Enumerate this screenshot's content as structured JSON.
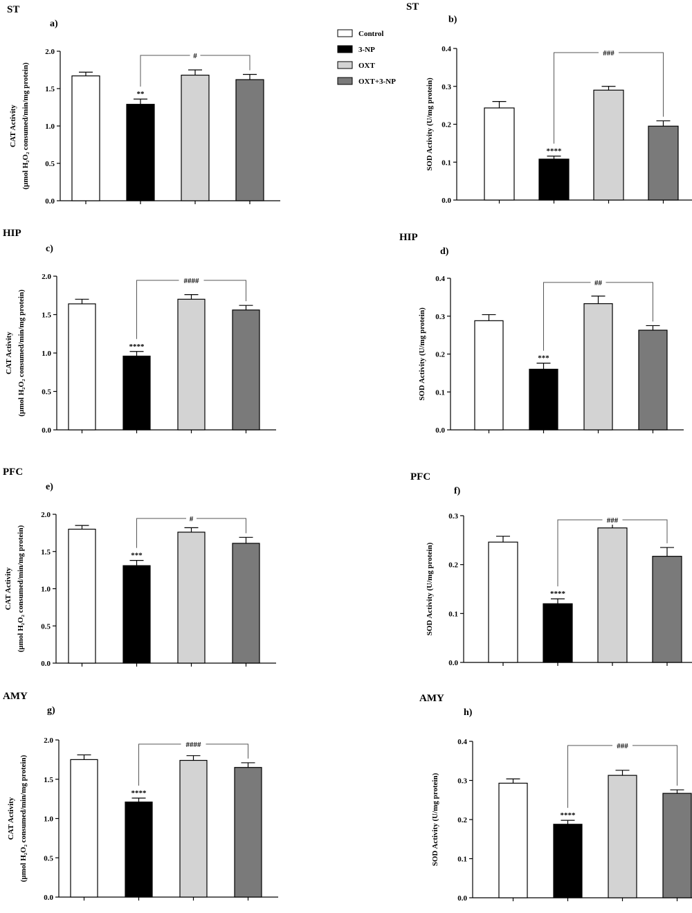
{
  "legend": [
    {
      "label": "Control",
      "color": "#ffffff"
    },
    {
      "label": "3-NP",
      "color": "#000000"
    },
    {
      "label": "OXT",
      "color": "#d3d3d3"
    },
    {
      "label": "OXT+3-NP",
      "color": "#7a7a7a"
    }
  ],
  "chart_data": [
    {
      "type": "bar",
      "panel": "a)",
      "region": "ST",
      "ylabel": [
        "CAT Activity",
        "(µmol H₂O₂ consumed/min/mg protein)"
      ],
      "ylim": [
        0,
        2.0
      ],
      "yticks": [
        "0.0",
        "0.5",
        "1.0",
        "1.5",
        "2.0"
      ],
      "categories": [
        "Control",
        "3-NP",
        "OXT",
        "OXT+3-NP"
      ],
      "values": [
        1.67,
        1.29,
        1.68,
        1.62
      ],
      "errors": [
        0.05,
        0.07,
        0.07,
        0.07
      ],
      "stars": "**",
      "bracket_label": "#"
    },
    {
      "type": "bar",
      "panel": "b)",
      "region": "ST",
      "ylabel": [
        "SOD Activity (U/mg protein)"
      ],
      "ylim": [
        0,
        0.4
      ],
      "yticks": [
        "0.0",
        "0.1",
        "0.2",
        "0.3",
        "0.4"
      ],
      "categories": [
        "Control",
        "3-NP",
        "OXT",
        "OXT+3-NP"
      ],
      "values": [
        0.243,
        0.108,
        0.29,
        0.195
      ],
      "errors": [
        0.017,
        0.008,
        0.01,
        0.014
      ],
      "stars": "****",
      "bracket_label": "###"
    },
    {
      "type": "bar",
      "panel": "c)",
      "region": "HIP",
      "ylabel": [
        "CAT Activity",
        "(µmol H₂O₂ consumed/min/mg protein)"
      ],
      "ylim": [
        0,
        2.0
      ],
      "yticks": [
        "0.0",
        "0.5",
        "1.0",
        "1.5",
        "2.0"
      ],
      "categories": [
        "Control",
        "3-NP",
        "OXT",
        "OXT+3-NP"
      ],
      "values": [
        1.64,
        0.96,
        1.7,
        1.56
      ],
      "errors": [
        0.06,
        0.06,
        0.06,
        0.06
      ],
      "stars": "****",
      "bracket_label": "####"
    },
    {
      "type": "bar",
      "panel": "d)",
      "region": "HIP",
      "ylabel": [
        "SOD Activity (U/mg protein)"
      ],
      "ylim": [
        0,
        0.4
      ],
      "yticks": [
        "0.0",
        "0.1",
        "0.2",
        "0.3",
        "0.4"
      ],
      "categories": [
        "Control",
        "3-NP",
        "OXT",
        "OXT+3-NP"
      ],
      "values": [
        0.288,
        0.16,
        0.333,
        0.263
      ],
      "errors": [
        0.016,
        0.016,
        0.02,
        0.012
      ],
      "stars": "***",
      "bracket_label": "##"
    },
    {
      "type": "bar",
      "panel": "e)",
      "region": "PFC",
      "ylabel": [
        "CAT Activity",
        "(µmol H₂O₂ consumed/min/mg protein)"
      ],
      "ylim": [
        0,
        2.0
      ],
      "yticks": [
        "0.0",
        "0.5",
        "1.0",
        "1.5",
        "2.0"
      ],
      "categories": [
        "Control",
        "3-NP",
        "OXT",
        "OXT+3-NP"
      ],
      "values": [
        1.8,
        1.31,
        1.76,
        1.61
      ],
      "errors": [
        0.05,
        0.07,
        0.06,
        0.08
      ],
      "stars": "***",
      "bracket_label": "#"
    },
    {
      "type": "bar",
      "panel": "f)",
      "region": "PFC",
      "ylabel": [
        "SOD Activity (U/mg protein)"
      ],
      "ylim": [
        0,
        0.3
      ],
      "yticks": [
        "0.0",
        "0.1",
        "0.2",
        "0.3"
      ],
      "categories": [
        "Control",
        "3-NP",
        "OXT",
        "OXT+3-NP"
      ],
      "values": [
        0.246,
        0.12,
        0.275,
        0.217
      ],
      "errors": [
        0.012,
        0.01,
        0.01,
        0.018
      ],
      "stars": "****",
      "bracket_label": "###"
    },
    {
      "type": "bar",
      "panel": "g)",
      "region": "AMY",
      "ylabel": [
        "CAT Activity",
        "(µmol H₂O₂ consumed/min/mg protein)"
      ],
      "ylim": [
        0,
        2.0
      ],
      "yticks": [
        "0.0",
        "0.5",
        "1.0",
        "1.5",
        "2.0"
      ],
      "categories": [
        "Control",
        "3-NP",
        "OXT",
        "OXT+3-NP"
      ],
      "values": [
        1.75,
        1.21,
        1.74,
        1.65
      ],
      "errors": [
        0.06,
        0.05,
        0.06,
        0.06
      ],
      "stars": "****",
      "bracket_label": "####"
    },
    {
      "type": "bar",
      "panel": "h)",
      "region": "AMY",
      "ylabel": [
        "SOD Activity (U/mg protein)"
      ],
      "ylim": [
        0,
        0.4
      ],
      "yticks": [
        "0.0",
        "0.1",
        "0.2",
        "0.3",
        "0.4"
      ],
      "categories": [
        "Control",
        "3-NP",
        "OXT",
        "OXT+3-NP"
      ],
      "values": [
        0.293,
        0.188,
        0.313,
        0.267
      ],
      "errors": [
        0.011,
        0.01,
        0.013,
        0.009
      ],
      "stars": "****",
      "bracket_label": "###"
    }
  ]
}
